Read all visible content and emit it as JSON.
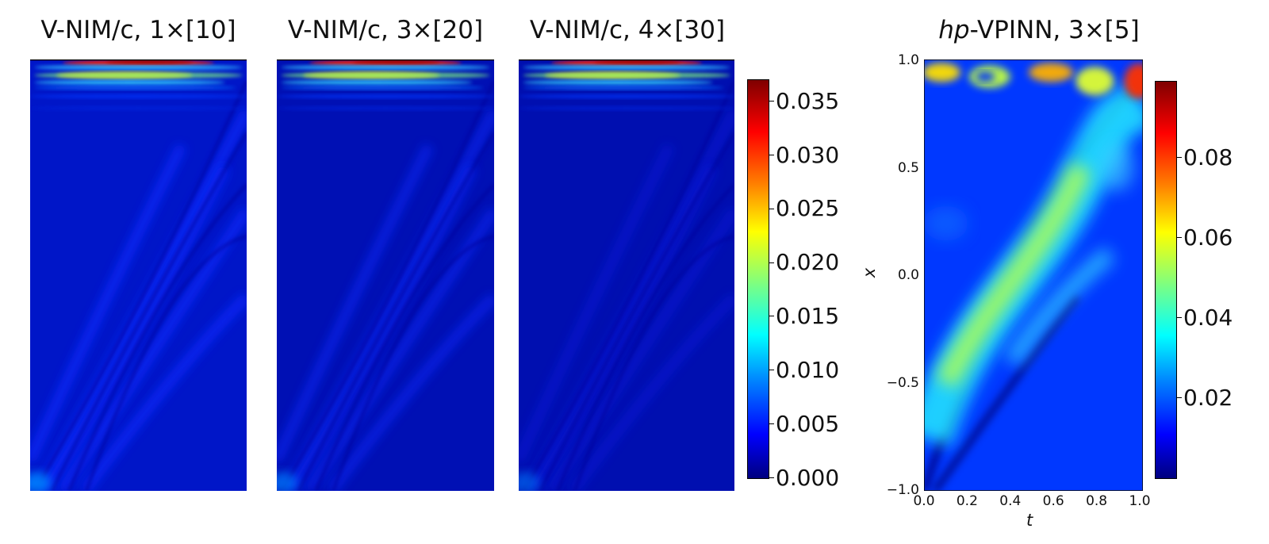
{
  "chart_data": [
    {
      "type": "heatmap",
      "title": "V-NIM/c, 1×[10]",
      "colormap": "jet",
      "shared_colorbar": "colorbar-1",
      "description_of_pattern": "peak error along x=1.0 boundary, diagonal low-amplitude ridges from (t=0,x=-1) toward (t=1,x=1)",
      "peak_error": 0.036
    },
    {
      "type": "heatmap",
      "title": "V-NIM/c, 3×[20]",
      "colormap": "jet",
      "shared_colorbar": "colorbar-1",
      "peak_error": 0.03
    },
    {
      "type": "heatmap",
      "title": "V-NIM/c, 4×[30]",
      "colormap": "jet",
      "shared_colorbar": "colorbar-1",
      "peak_error": 0.035
    },
    {
      "type": "heatmap",
      "title_italic": "hp",
      "title_rest": "-VPINN, 3×[5]",
      "colormap": "jet",
      "xlabel": "t",
      "ylabel": "x",
      "xlim": [
        0.0,
        1.0
      ],
      "ylim": [
        -1.0,
        1.0
      ],
      "x_ticks": [
        "0.0",
        "0.2",
        "0.4",
        "0.6",
        "0.8",
        "1.0"
      ],
      "y_ticks": [
        "−1.0",
        "−0.5",
        "0.0",
        "0.5",
        "1.0"
      ],
      "peak_error": 0.099
    }
  ],
  "colorbar_1": {
    "range": [
      0.0,
      0.037
    ],
    "ticks": [
      "0.000",
      "0.005",
      "0.010",
      "0.015",
      "0.020",
      "0.025",
      "0.030",
      "0.035"
    ],
    "tick_values": [
      0.0,
      0.005,
      0.01,
      0.015,
      0.02,
      0.025,
      0.03,
      0.035
    ]
  },
  "colorbar_2": {
    "range": [
      0.0,
      0.099
    ],
    "ticks": [
      "0.02",
      "0.04",
      "0.06",
      "0.08"
    ],
    "tick_values": [
      0.02,
      0.04,
      0.06,
      0.08
    ]
  },
  "colors": {
    "jet_low": "#00007f",
    "jet_mid": "#7fff7f",
    "jet_high": "#7f0000"
  }
}
